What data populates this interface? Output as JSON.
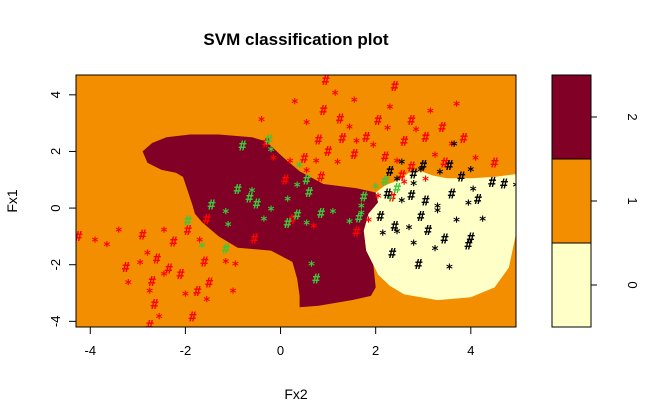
{
  "chart_data": {
    "type": "scatter",
    "title": "SVM classification plot",
    "xlabel": "Fx2",
    "ylabel": "Fx1",
    "xlim": [
      -4.3,
      4.95
    ],
    "ylim": [
      -4.2,
      4.7
    ],
    "xticks": [
      "-4",
      "-2",
      "0",
      "2",
      "4"
    ],
    "yticks": [
      "-4",
      "-2",
      "0",
      "2",
      "4"
    ],
    "colors": {
      "class_0": "#FFFFC8",
      "class_1": "#F28E00",
      "class_2": "#800026"
    },
    "legend": {
      "position": "right",
      "ticks": [
        "0",
        "1",
        "2"
      ]
    },
    "regions": [
      {
        "class": "2",
        "polygon": [
          [
            -2.9,
            2.0
          ],
          [
            -2.7,
            2.3
          ],
          [
            -2.4,
            2.5
          ],
          [
            -1.9,
            2.6
          ],
          [
            -1.3,
            2.6
          ],
          [
            -0.6,
            2.5
          ],
          [
            -0.3,
            2.35
          ],
          [
            0.05,
            1.8
          ],
          [
            0.4,
            1.3
          ],
          [
            0.9,
            0.85
          ],
          [
            1.6,
            0.7
          ],
          [
            2.0,
            0.55
          ],
          [
            2.05,
            0.2
          ],
          [
            1.85,
            -0.2
          ],
          [
            1.75,
            -0.8
          ],
          [
            1.8,
            -1.5
          ],
          [
            1.95,
            -2.0
          ],
          [
            2.0,
            -2.8
          ],
          [
            1.9,
            -3.1
          ],
          [
            1.5,
            -3.25
          ],
          [
            0.8,
            -3.45
          ],
          [
            0.4,
            -3.5
          ],
          [
            0.4,
            -3.1
          ],
          [
            0.35,
            -2.5
          ],
          [
            0.25,
            -1.9
          ],
          [
            -0.2,
            -1.5
          ],
          [
            -0.9,
            -1.4
          ],
          [
            -1.3,
            -1.0
          ],
          [
            -1.65,
            -0.5
          ],
          [
            -1.8,
            -0.2
          ],
          [
            -1.85,
            0.1
          ],
          [
            -1.95,
            0.6
          ],
          [
            -2.05,
            1.1
          ],
          [
            -2.2,
            1.25
          ],
          [
            -2.5,
            1.35
          ],
          [
            -2.8,
            1.6
          ]
        ]
      },
      {
        "class": "0",
        "polygon": [
          [
            2.0,
            0.55
          ],
          [
            2.2,
            0.8
          ],
          [
            2.5,
            1.0
          ],
          [
            2.7,
            1.25
          ],
          [
            2.95,
            1.3
          ],
          [
            3.2,
            1.15
          ],
          [
            3.5,
            1.05
          ],
          [
            4.0,
            1.05
          ],
          [
            4.5,
            1.1
          ],
          [
            4.95,
            1.2
          ],
          [
            4.95,
            -0.9
          ],
          [
            4.8,
            -2.1
          ],
          [
            4.5,
            -2.8
          ],
          [
            4.0,
            -3.15
          ],
          [
            3.3,
            -3.25
          ],
          [
            2.6,
            -3.05
          ],
          [
            2.3,
            -2.75
          ],
          [
            2.05,
            -2.35
          ],
          [
            1.95,
            -2.0
          ],
          [
            1.8,
            -1.5
          ],
          [
            1.75,
            -0.8
          ],
          [
            1.85,
            -0.2
          ],
          [
            2.05,
            0.2
          ]
        ]
      }
    ],
    "series": [
      {
        "name": "2",
        "color": "#FF0000",
        "points": [
          [
            -2.35,
            -2.15
          ],
          [
            -3.65,
            -1.35
          ],
          [
            -4.25,
            -1.0
          ],
          [
            -3.9,
            -1.2
          ],
          [
            -2.6,
            -1.8
          ],
          [
            -2.45,
            -2.4
          ],
          [
            -2.7,
            -2.6
          ],
          [
            -2.75,
            -3.0
          ],
          [
            -2.65,
            -3.4
          ],
          [
            -2.55,
            -3.9
          ],
          [
            -2.75,
            -4.15
          ],
          [
            -3.2,
            -2.7
          ],
          [
            -3.25,
            -2.1
          ],
          [
            -2.95,
            -2.0
          ],
          [
            -2.1,
            -2.35
          ],
          [
            -2.0,
            -3.1
          ],
          [
            -1.75,
            -2.95
          ],
          [
            -1.55,
            -3.3
          ],
          [
            -1.6,
            -1.9
          ],
          [
            -1.15,
            -1.95
          ],
          [
            -1.5,
            -2.65
          ],
          [
            -1.0,
            -3.0
          ],
          [
            -2.25,
            -1.2
          ],
          [
            -2.45,
            -0.85
          ],
          [
            -1.95,
            -0.8
          ],
          [
            -1.7,
            -1.2
          ],
          [
            -1.55,
            -0.4
          ],
          [
            -0.95,
            -2.05
          ],
          [
            -0.55,
            -1.1
          ],
          [
            -2.8,
            -1.65
          ],
          [
            -2.9,
            -0.95
          ],
          [
            -3.4,
            -0.85
          ],
          [
            -1.85,
            -3.85
          ],
          [
            -0.4,
            3.05
          ],
          [
            -0.3,
            2.3
          ],
          [
            -0.15,
            1.7
          ],
          [
            0.1,
            1.0
          ],
          [
            0.2,
            1.6
          ],
          [
            0.5,
            1.75
          ],
          [
            0.75,
            1.6
          ],
          [
            0.8,
            2.4
          ],
          [
            0.55,
            2.95
          ],
          [
            0.9,
            3.45
          ],
          [
            0.3,
            3.7
          ],
          [
            0.95,
            4.5
          ],
          [
            1.55,
            3.75
          ],
          [
            1.25,
            3.15
          ],
          [
            1.45,
            2.8
          ],
          [
            1.3,
            2.45
          ],
          [
            1.6,
            2.3
          ],
          [
            1.8,
            2.5
          ],
          [
            1.95,
            2.15
          ],
          [
            2.2,
            1.8
          ],
          [
            2.45,
            1.6
          ],
          [
            2.6,
            2.35
          ],
          [
            2.25,
            2.75
          ],
          [
            2.05,
            3.1
          ],
          [
            2.3,
            3.5
          ],
          [
            2.75,
            3.1
          ],
          [
            2.85,
            2.7
          ],
          [
            3.05,
            2.5
          ],
          [
            3.15,
            3.35
          ],
          [
            3.4,
            2.85
          ],
          [
            3.25,
            1.8
          ],
          [
            3.45,
            1.6
          ],
          [
            3.6,
            2.2
          ],
          [
            3.85,
            2.45
          ],
          [
            4.1,
            1.7
          ],
          [
            4.5,
            1.6
          ],
          [
            3.7,
            3.6
          ],
          [
            2.4,
            4.3
          ],
          [
            1.15,
            4.0
          ],
          [
            1.0,
            2.0
          ],
          [
            1.2,
            1.55
          ],
          [
            1.55,
            1.9
          ],
          [
            0.55,
            1.25
          ],
          [
            0.85,
            1.1
          ],
          [
            2.05,
            0.35
          ],
          [
            2.35,
            0.4
          ],
          [
            2.6,
            0.85
          ],
          [
            2.75,
            1.45
          ],
          [
            3.05,
            0.95
          ],
          [
            2.55,
            1.15
          ],
          [
            0.7,
            -0.7
          ],
          [
            0.25,
            -0.4
          ],
          [
            1.85,
            -0.5
          ],
          [
            1.6,
            -0.85
          ]
        ]
      },
      {
        "name": "1",
        "color": "#3CC83C",
        "points": [
          [
            -1.95,
            -0.45
          ],
          [
            -1.65,
            -1.4
          ],
          [
            -1.15,
            -1.45
          ],
          [
            -1.1,
            -0.65
          ],
          [
            -1.45,
            0.1
          ],
          [
            -0.35,
            -0.45
          ],
          [
            -0.5,
            0.15
          ],
          [
            -0.2,
            -0.1
          ],
          [
            -0.9,
            0.65
          ],
          [
            -0.6,
            0.55
          ],
          [
            -0.65,
            0.35
          ],
          [
            -1.15,
            -0.2
          ],
          [
            -0.8,
            2.2
          ],
          [
            -0.2,
            2.0
          ],
          [
            -0.25,
            2.4
          ],
          [
            0.4,
            1.45
          ],
          [
            0.55,
            1.0
          ],
          [
            0.35,
            0.75
          ],
          [
            0.6,
            0.55
          ],
          [
            0.15,
            0.25
          ],
          [
            0.35,
            -0.25
          ],
          [
            0.55,
            -0.6
          ],
          [
            0.85,
            -0.2
          ],
          [
            1.1,
            -0.2
          ],
          [
            0.15,
            -0.55
          ],
          [
            0.65,
            -2.05
          ],
          [
            0.75,
            -2.5
          ],
          [
            1.45,
            -0.55
          ],
          [
            1.65,
            -0.35
          ],
          [
            1.7,
            0.0
          ],
          [
            1.75,
            0.4
          ],
          [
            2.0,
            0.7
          ],
          [
            2.2,
            0.95
          ],
          [
            2.3,
            0.3
          ],
          [
            2.45,
            0.7
          ],
          [
            1.7,
            -0.25
          ]
        ]
      },
      {
        "name": "0",
        "color": "#000000",
        "points": [
          [
            2.3,
            1.3
          ],
          [
            2.55,
            1.55
          ],
          [
            2.8,
            1.2
          ],
          [
            2.95,
            1.3
          ],
          [
            3.0,
            1.5
          ],
          [
            3.35,
            1.2
          ],
          [
            3.55,
            1.5
          ],
          [
            3.65,
            2.2
          ],
          [
            3.8,
            1.1
          ],
          [
            4.0,
            1.3
          ],
          [
            4.45,
            0.9
          ],
          [
            4.05,
            0.6
          ],
          [
            2.25,
            0.5
          ],
          [
            2.55,
            0.2
          ],
          [
            2.75,
            0.45
          ],
          [
            3.3,
            0.0
          ],
          [
            3.6,
            0.5
          ],
          [
            3.95,
            0.1
          ],
          [
            4.15,
            0.3
          ],
          [
            4.25,
            -0.45
          ],
          [
            4.0,
            -1.05
          ],
          [
            3.3,
            -0.15
          ],
          [
            2.95,
            -0.3
          ],
          [
            2.7,
            -0.75
          ],
          [
            2.4,
            -0.65
          ],
          [
            2.15,
            -0.95
          ],
          [
            2.35,
            -1.6
          ],
          [
            2.8,
            -1.3
          ],
          [
            3.1,
            -0.8
          ],
          [
            3.25,
            -1.5
          ],
          [
            3.45,
            -1.1
          ],
          [
            3.7,
            -0.5
          ],
          [
            2.9,
            -2.0
          ],
          [
            3.55,
            -2.15
          ],
          [
            2.1,
            -0.3
          ],
          [
            2.45,
            -0.9
          ],
          [
            3.95,
            -1.3
          ],
          [
            4.95,
            0.75
          ],
          [
            4.7,
            0.85
          ],
          [
            2.8,
            0.8
          ],
          [
            3.05,
            0.25
          ],
          [
            2.45,
            0.95
          ]
        ]
      }
    ]
  }
}
